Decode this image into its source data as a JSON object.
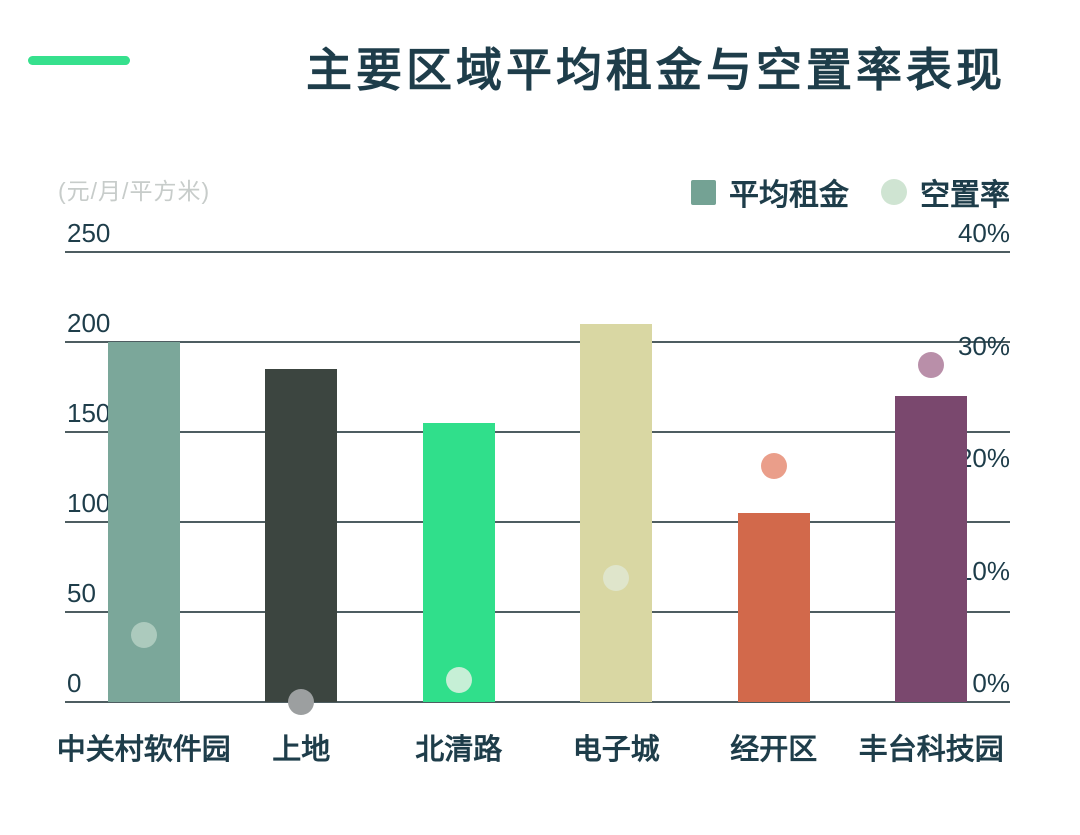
{
  "header": {
    "title": "主要区域平均租金与空置率表现"
  },
  "colors": {
    "accent": "#36e08d",
    "ink": "#1e3d4a",
    "grid": "#4e5d61",
    "muted": "#c7ccca"
  },
  "legend": [
    {
      "label": "平均租金",
      "shape": "square",
      "color": "#74a294"
    },
    {
      "label": "空置率",
      "shape": "circle",
      "color": "#cfe4d2"
    }
  ],
  "chart_data": {
    "type": "bar",
    "subtype": "combo-bar-scatter-dual-axis",
    "title": "主要区域平均租金与空置率表现",
    "categories": [
      "中关村软件园",
      "上地",
      "北清路",
      "电子城",
      "经开区",
      "丰台科技园"
    ],
    "series": [
      {
        "name": "平均租金",
        "type": "bar",
        "axis": "left",
        "unit": "元/月/平方米",
        "values": [
          200,
          185,
          155,
          210,
          105,
          170
        ],
        "colors": [
          "#7ba79a",
          "#3c4540",
          "#30df8b",
          "#d9d7a3",
          "#d2694b",
          "#7a486e"
        ]
      },
      {
        "name": "空置率",
        "type": "scatter",
        "axis": "right",
        "unit": "%",
        "values": [
          6,
          0,
          2,
          11,
          21,
          30
        ],
        "colors": [
          "#accabd",
          "#9c9fa0",
          "#c6efd6",
          "#dfe5cb",
          "#ea9e8a",
          "#b98fa9"
        ]
      }
    ],
    "left_axis": {
      "label": "(元/月/平方米)",
      "min": 0,
      "max": 250,
      "ticks": [
        250,
        200,
        150,
        100,
        50,
        0
      ]
    },
    "right_axis": {
      "min": 0,
      "max": 40,
      "ticks": [
        40,
        30,
        20,
        10,
        0
      ],
      "suffix": "%"
    },
    "grid": true,
    "legend_position": "top-right"
  }
}
